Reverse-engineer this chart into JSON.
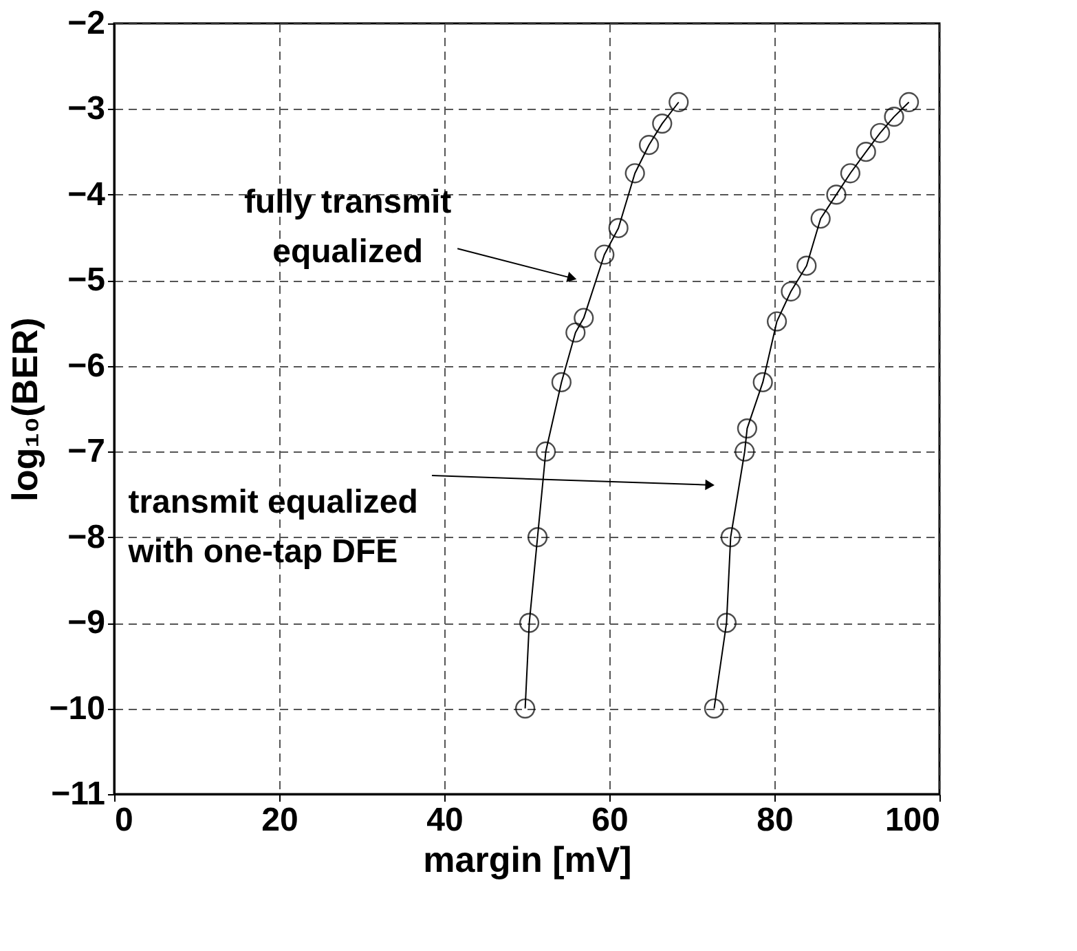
{
  "chart_data": {
    "type": "line",
    "xlabel": "margin [mV]",
    "ylabel": "log₁₀(BER)",
    "xlim": [
      0,
      100
    ],
    "xticks": [
      0,
      20,
      40,
      60,
      80,
      100
    ],
    "ylim": [
      -11,
      -2
    ],
    "yticks": [
      -11,
      -10,
      -9,
      -8,
      -7,
      -6,
      -5,
      -4,
      -3,
      -2
    ],
    "grid": true,
    "marker": "circle",
    "line_style": "solid",
    "series": [
      {
        "color": "#000000",
        "x": [
          49.8,
          50.3,
          51.3,
          52.3,
          54.2,
          55.9,
          56.9,
          59.4,
          61.1,
          63.1,
          64.8,
          66.4,
          68.4
        ],
        "values": [
          -10,
          -9,
          -8,
          -7,
          -6.19,
          -5.61,
          -5.44,
          -4.7,
          -4.39,
          -3.75,
          -3.42,
          -3.17,
          -2.92
        ]
      },
      {
        "color": "#000000",
        "x": [
          72.7,
          74.2,
          74.7,
          76.4,
          76.7,
          78.6,
          80.3,
          82.0,
          83.9,
          85.6,
          87.5,
          89.2,
          91.1,
          92.8,
          94.5,
          96.3
        ],
        "values": [
          -10,
          -9,
          -8,
          -7,
          -6.73,
          -6.19,
          -5.48,
          -5.13,
          -4.83,
          -4.28,
          -4.0,
          -3.75,
          -3.5,
          -3.28,
          -3.09,
          -2.92
        ]
      }
    ],
    "annotations": [
      {
        "text": "fully transmit\nequalized",
        "x": 55.3,
        "y": -4.97
      },
      {
        "text": "transmit equalized\nwith one-tap DFE",
        "x": 72.0,
        "y": -7.39
      }
    ]
  }
}
